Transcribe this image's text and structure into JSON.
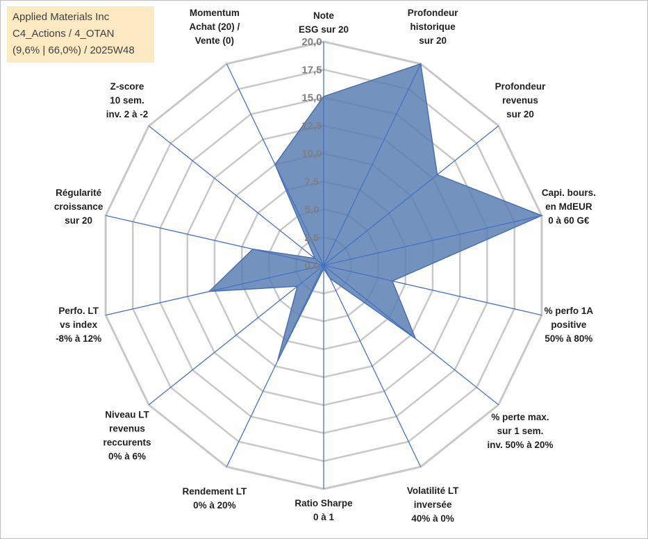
{
  "title_box": {
    "line1": "Applied Materials Inc",
    "line2": "C4_Actions / 4_OTAN",
    "line3": "(9,6% | 66,0%) / 2025W48"
  },
  "colors": {
    "grid": "#c8c8c8",
    "spoke": "#4472c4",
    "fill": "#5b7fb3",
    "outline": "#4a6fb0",
    "tick": "#7f7f7f",
    "title_bg": "#fde9c2"
  },
  "chart_data": {
    "type": "radar",
    "rmax": 20,
    "tick_step": 2.5,
    "tick_labels": [
      "0,0",
      "2,5",
      "5,0",
      "7,5",
      "10,0",
      "12,5",
      "15,0",
      "17,5",
      "20,0"
    ],
    "axes": [
      {
        "label": [
          "Note",
          "ESG sur 20"
        ],
        "value": 15.1
      },
      {
        "label": [
          "Profondeur",
          "historique",
          "sur 20"
        ],
        "value": 20.0
      },
      {
        "label": [
          "Profondeur",
          "revenus",
          "sur 20"
        ],
        "value": 13.0
      },
      {
        "label": [
          "Capi. bours.",
          "en MdEUR",
          "0 à 60 G€"
        ],
        "value": 20.0
      },
      {
        "label": [
          "% perfo 1A",
          "positive",
          "50% à 80%"
        ],
        "value": 6.3
      },
      {
        "label": [
          "% perte max.",
          "sur 1 sem.",
          "inv. 50% à 20%"
        ],
        "value": 10.5
      },
      {
        "label": [
          "Volatilité LT",
          "inversée",
          "40% à 0%"
        ],
        "value": 1.3
      },
      {
        "label": [
          "Ratio Sharpe",
          "0 à 1"
        ],
        "value": 0.3
      },
      {
        "label": [
          "Rendement LT",
          "0% à 20%"
        ],
        "value": 9.5
      },
      {
        "label": [
          "Niveau LT",
          "revenus",
          "reccurents",
          "0% à 6%"
        ],
        "value": 3.0
      },
      {
        "label": [
          "Perfo. LT",
          "vs index",
          "-8% à 12%"
        ],
        "value": 10.5
      },
      {
        "label": [
          "Régularité",
          "croissance",
          "sur 20"
        ],
        "value": 6.5
      },
      {
        "label": [
          "Z-score",
          "10 sem.",
          "inv. 2 à -2"
        ],
        "value": 1.0
      },
      {
        "label": [
          "Momentum",
          "Achat (20) /",
          "Vente (0)"
        ],
        "value": 10.0
      }
    ]
  }
}
